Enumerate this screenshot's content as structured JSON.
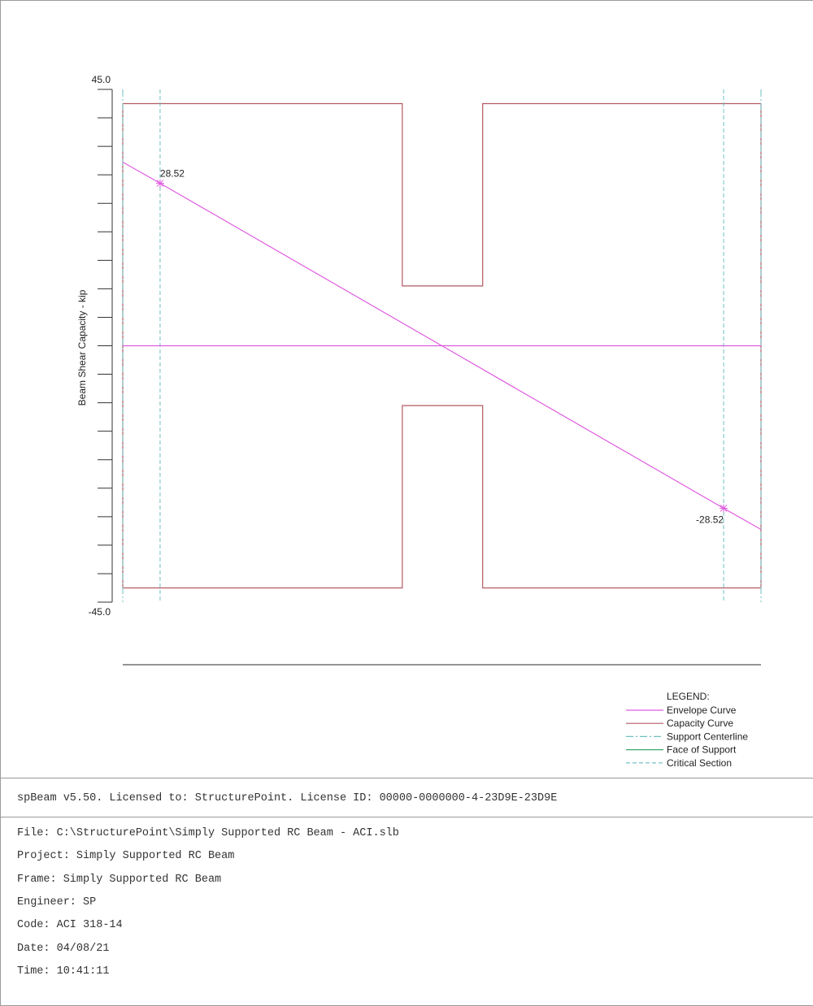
{
  "chart_data": {
    "type": "line",
    "ylabel": "Beam Shear Capacity - kip",
    "ylim": [
      -45.0,
      45.0
    ],
    "ytick_labels": [
      "45.0",
      "-45.0"
    ],
    "ytick_step": 5,
    "grid": false,
    "legend_position": "bottom-right",
    "legend_title": "LEGEND:",
    "legend": [
      {
        "label": "Envelope Curve",
        "color": "#e05ce0",
        "style": "solid"
      },
      {
        "label": "Capacity Curve",
        "color": "#b25a62",
        "style": "solid"
      },
      {
        "label": "Support Centerline",
        "color": "#6fbfc0",
        "style": "dashdot"
      },
      {
        "label": "Face of Support",
        "color": "#3aa86a",
        "style": "solid"
      },
      {
        "label": "Critical Section",
        "color": "#6fbfc0",
        "style": "dashed"
      }
    ],
    "x_span_fraction": [
      0,
      1
    ],
    "series": [
      {
        "name": "Envelope Curve",
        "points": [
          [
            0.0,
            32.24
          ],
          [
            0.0585,
            28.52
          ],
          [
            0.5,
            0.0
          ],
          [
            0.9415,
            -28.52
          ],
          [
            1.0,
            -32.24
          ]
        ],
        "zero_line": true
      },
      {
        "name": "Capacity Curve",
        "upper": [
          [
            0.0,
            42.5
          ],
          [
            0.438,
            42.5
          ],
          [
            0.438,
            10.5
          ],
          [
            0.564,
            10.5
          ],
          [
            0.564,
            42.5
          ],
          [
            1.0,
            42.5
          ]
        ],
        "lower": [
          [
            0.0,
            -42.5
          ],
          [
            0.438,
            -42.5
          ],
          [
            0.438,
            -10.5
          ],
          [
            0.564,
            -10.5
          ],
          [
            0.564,
            -42.5
          ],
          [
            1.0,
            -42.5
          ]
        ]
      }
    ],
    "support_centerlines_x": [
      0.0,
      1.0
    ],
    "critical_sections_x": [
      0.0585,
      0.9415
    ],
    "annotations": [
      {
        "text": "28.52",
        "x": 0.0585,
        "y": 28.52
      },
      {
        "text": "-28.52",
        "x": 0.9415,
        "y": -28.52
      }
    ]
  },
  "footer": {
    "license": "spBeam v5.50. Licensed to: StructurePoint. License ID: 00000-0000000-4-23D9E-23D9E",
    "lines": [
      "File: C:\\StructurePoint\\Simply Supported RC Beam - ACI.slb",
      "Project: Simply Supported RC Beam",
      "Frame: Simply Supported RC Beam",
      "Engineer: SP",
      "Code: ACI 318-14",
      "Date: 04/08/21",
      "Time: 10:41:11"
    ]
  },
  "colors": {
    "envelope": "#e05ce0",
    "capacity": "#b25a62",
    "support": "#6fbfc0",
    "face": "#3aa86a",
    "axis": "#333333"
  }
}
